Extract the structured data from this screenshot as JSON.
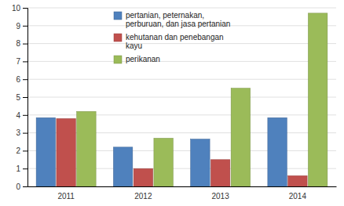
{
  "chart_data": {
    "type": "bar",
    "categories": [
      "2011",
      "2012",
      "2013",
      "2014"
    ],
    "series": [
      {
        "name": "pertanian, peternakan,\nperburuan, dan jasa pertanian",
        "color": "#4F81BD",
        "values": [
          3.85,
          2.2,
          2.65,
          3.85
        ]
      },
      {
        "name": "kehutanan dan penebangan\nkayu",
        "color": "#C0504D",
        "values": [
          3.8,
          1.0,
          1.5,
          0.6
        ]
      },
      {
        "name": "perikanan",
        "color": "#9BBB59",
        "values": [
          4.2,
          2.7,
          5.5,
          9.7
        ]
      }
    ],
    "ylim": [
      0,
      10
    ],
    "yticks": [
      0,
      1,
      2,
      3,
      4,
      5,
      6,
      7,
      8,
      9,
      10
    ],
    "grid": true,
    "legend": "upper left"
  }
}
